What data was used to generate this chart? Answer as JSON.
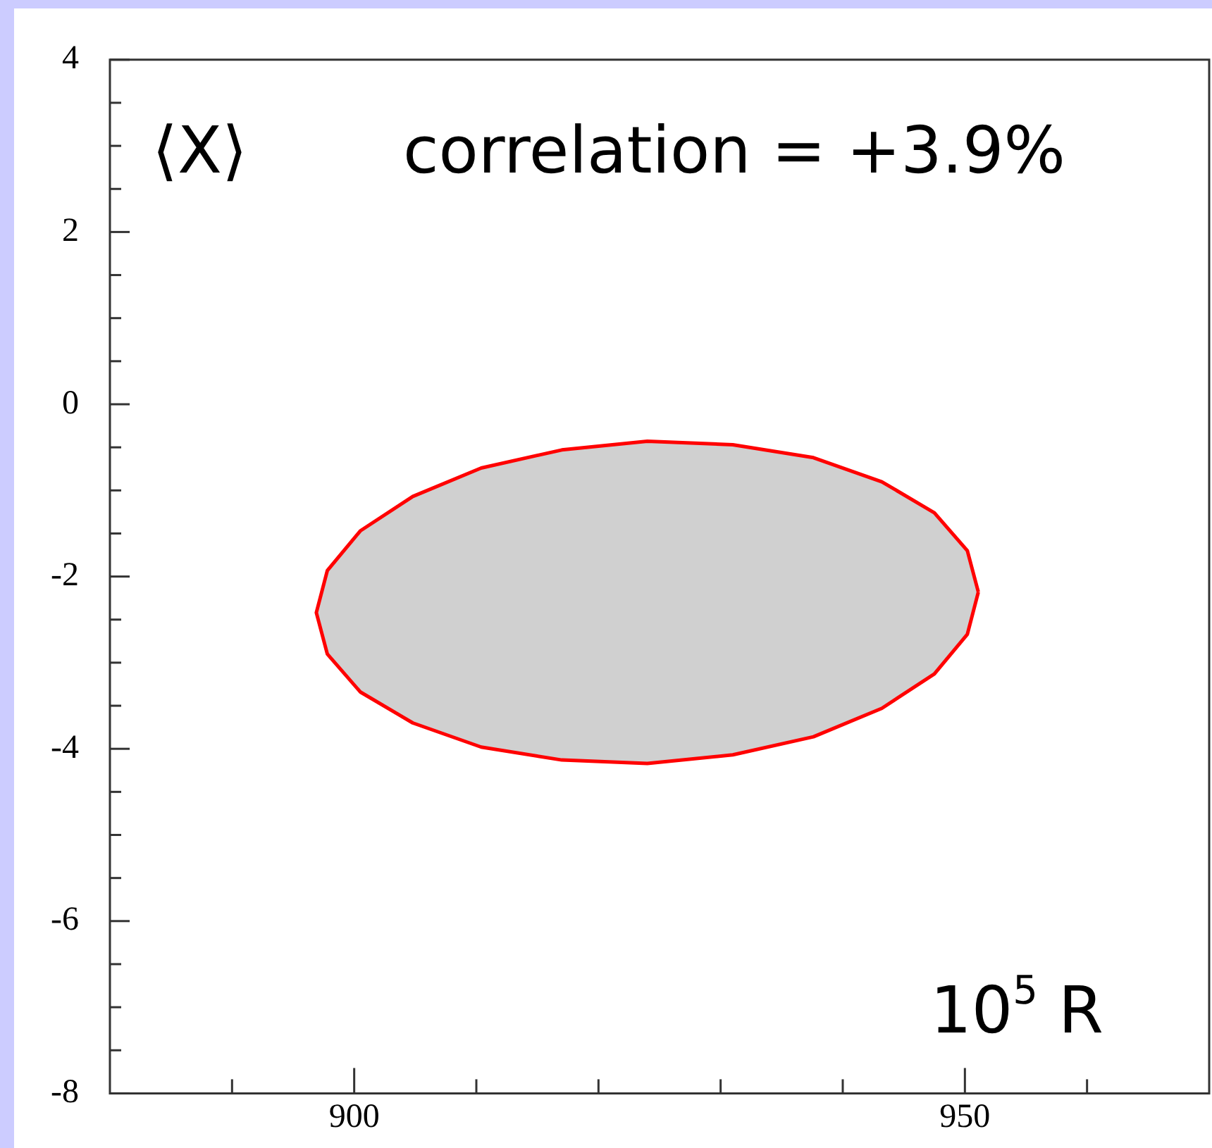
{
  "chart_data": {
    "type": "area",
    "annotations": [
      "⟨X⟩",
      "correlation = +3.9%",
      "10$^{5}$ R"
    ],
    "xlim": [
      880,
      970
    ],
    "xticks": [
      {
        "value": 890,
        "label": null
      },
      900,
      {
        "value": 910,
        "label": null
      },
      {
        "value": 920,
        "label": null
      },
      {
        "value": 930,
        "label": null
      },
      {
        "value": 940,
        "label": null
      },
      950,
      {
        "value": 960,
        "label": null
      }
    ],
    "ylim": [
      -8,
      4
    ],
    "yticks": [
      -8,
      {
        "value": -7.5,
        "label": null
      },
      {
        "value": -7,
        "label": null
      },
      {
        "value": -6.5,
        "label": null
      },
      -6,
      {
        "value": -5.5,
        "label": null
      },
      {
        "value": -5,
        "label": null
      },
      {
        "value": -4.5,
        "label": null
      },
      -4,
      {
        "value": -3.5,
        "label": null
      },
      {
        "value": -3,
        "label": null
      },
      {
        "value": -2.5,
        "label": null
      },
      -2,
      {
        "value": -1.5,
        "label": null
      },
      {
        "value": -1,
        "label": null
      },
      {
        "value": -0.5,
        "label": null
      },
      0,
      {
        "value": 0.5,
        "label": null
      },
      {
        "value": 1,
        "label": null
      },
      {
        "value": 1.5,
        "label": null
      },
      2,
      {
        "value": 2.5,
        "label": null
      },
      {
        "value": 3,
        "label": null
      },
      {
        "value": 3.5,
        "label": null
      },
      4
    ],
    "grid": false,
    "legend": false,
    "marker": "none",
    "line_style": "solid",
    "series": [
      {
        "color": "#ff0000",
        "x": [
          951.1,
          950.2,
          947.5,
          943.2,
          937.6,
          931.0,
          924,
          917.0,
          910.4,
          904.8,
          900.5,
          897.8,
          896.9,
          897.8,
          900.5,
          904.8,
          910.4,
          917.0,
          924,
          931.0,
          937.6,
          943.2,
          947.5,
          950.2,
          951.1
        ],
        "values": [
          -2.18,
          -1.7,
          -1.26,
          -0.9,
          -0.62,
          -0.47,
          -0.43,
          -0.53,
          -0.74,
          -1.07,
          -1.47,
          -1.93,
          -2.42,
          -2.9,
          -3.34,
          -3.7,
          -3.98,
          -4.13,
          -4.17,
          -4.07,
          -3.86,
          -3.53,
          -3.13,
          -2.67,
          -2.18
        ]
      }
    ]
  }
}
